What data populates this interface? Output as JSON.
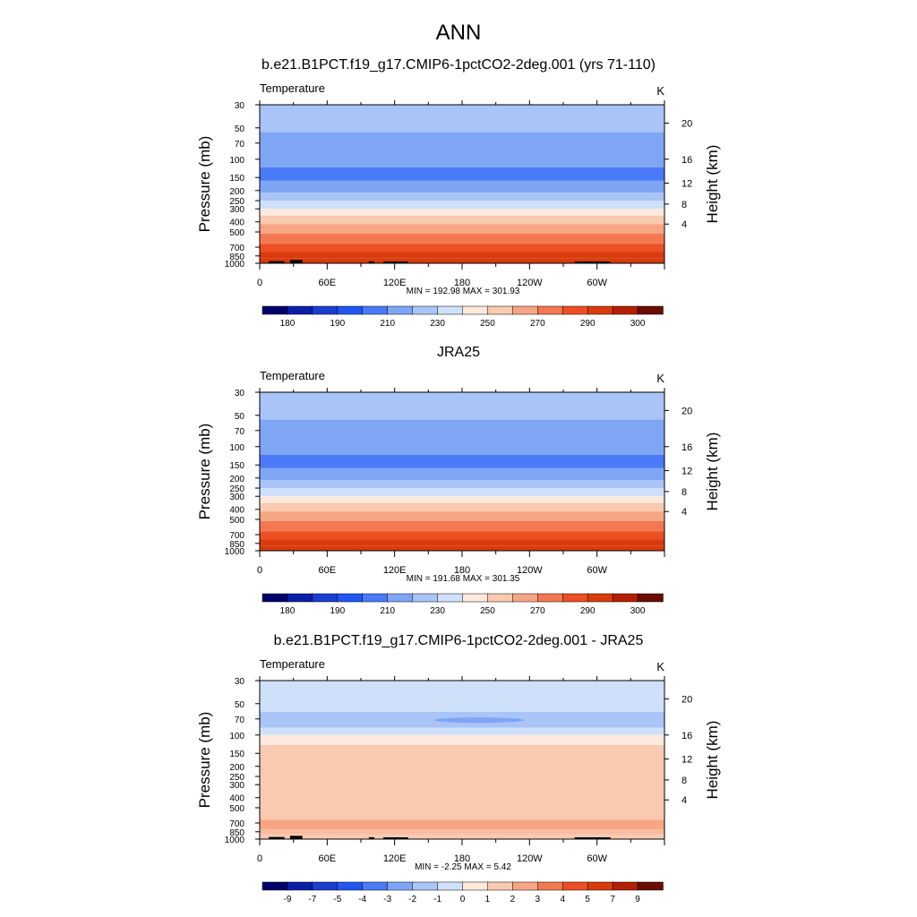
{
  "figure": {
    "title": "ANN"
  },
  "pressure_ticks": [
    "30",
    "50",
    "70",
    "100",
    "150",
    "200",
    "250",
    "300",
    "400",
    "500",
    "700",
    "850",
    "1000"
  ],
  "height_ticks": [
    "20",
    "16",
    "12",
    "8",
    "4"
  ],
  "lon_ticks": [
    "0",
    "60E",
    "120E",
    "180",
    "120W",
    "60W"
  ],
  "chart_data": [
    {
      "type": "heatmap",
      "title": "b.e21.B1PCT.f19_g17.CMIP6-1pctCO2-2deg.001 (yrs 71-110)",
      "left_label": "Temperature",
      "units": "K",
      "ylabel": "Pressure (mb)",
      "ylabel_right": "Height (km)",
      "stats": "MIN = 192.98  MAX = 301.93",
      "colorbar_labels": [
        "180",
        "190",
        "210",
        "230",
        "250",
        "270",
        "290",
        "300"
      ],
      "x_range_deg": [
        0,
        360
      ],
      "y_range_mb": [
        30,
        1000
      ],
      "levels_top_to_bottom": [
        {
          "p": 30,
          "value": 215
        },
        {
          "p": 55,
          "value": 205
        },
        {
          "p": 120,
          "value": 199
        },
        {
          "p": 160,
          "value": 207
        },
        {
          "p": 210,
          "value": 215
        },
        {
          "p": 250,
          "value": 225
        },
        {
          "p": 300,
          "value": 235
        },
        {
          "p": 350,
          "value": 245
        },
        {
          "p": 420,
          "value": 255
        },
        {
          "p": 520,
          "value": 263
        },
        {
          "p": 650,
          "value": 270
        },
        {
          "p": 780,
          "value": 280
        },
        {
          "p": 900,
          "value": 288
        },
        {
          "p": 1000,
          "value": 296
        }
      ],
      "terrain": true
    },
    {
      "type": "heatmap",
      "title": "JRA25",
      "left_label": "Temperature",
      "units": "K",
      "ylabel": "Pressure (mb)",
      "ylabel_right": "Height (km)",
      "stats": "MIN = 191.68  MAX = 301.35",
      "colorbar_labels": [
        "180",
        "190",
        "210",
        "230",
        "250",
        "270",
        "290",
        "300"
      ],
      "x_range_deg": [
        0,
        360
      ],
      "y_range_mb": [
        30,
        1000
      ],
      "levels_top_to_bottom": [
        {
          "p": 30,
          "value": 215
        },
        {
          "p": 55,
          "value": 205
        },
        {
          "p": 120,
          "value": 199
        },
        {
          "p": 160,
          "value": 207
        },
        {
          "p": 210,
          "value": 215
        },
        {
          "p": 250,
          "value": 225
        },
        {
          "p": 300,
          "value": 235
        },
        {
          "p": 350,
          "value": 245
        },
        {
          "p": 420,
          "value": 255
        },
        {
          "p": 520,
          "value": 263
        },
        {
          "p": 650,
          "value": 270
        },
        {
          "p": 780,
          "value": 280
        },
        {
          "p": 900,
          "value": 288
        },
        {
          "p": 1000,
          "value": 296
        }
      ],
      "terrain": false
    },
    {
      "type": "heatmap",
      "title": "b.e21.B1PCT.f19_g17.CMIP6-1pctCO2-2deg.001 - JRA25",
      "left_label": "Temperature",
      "units": "K",
      "ylabel": "Pressure (mb)",
      "ylabel_right": "Height (km)",
      "stats": "MIN =  -2.25  MAX =   5.42",
      "colorbar_labels": [
        "-9",
        "-7",
        "-5",
        "-4",
        "-3",
        "-2",
        "-1",
        "0",
        "1",
        "2",
        "3",
        "4",
        "5",
        "7",
        "9"
      ],
      "x_range_deg": [
        0,
        360
      ],
      "y_range_mb": [
        30,
        1000
      ],
      "levels_top_to_bottom": [
        {
          "p": 30,
          "value": -0.5
        },
        {
          "p": 60,
          "value": -1.5
        },
        {
          "p": 85,
          "value": -0.5
        },
        {
          "p": 100,
          "value": 0.5
        },
        {
          "p": 125,
          "value": 1.5
        },
        {
          "p": 650,
          "value": 2.5
        },
        {
          "p": 900,
          "value": 1.5
        },
        {
          "p": 1000,
          "value": 3.5
        }
      ],
      "terrain": true
    }
  ],
  "colors": {
    "abs_palette": [
      "#00006a",
      "#0a1fa8",
      "#1a3fd0",
      "#2157f0",
      "#4a7af7",
      "#7fa5f5",
      "#a9c4f6",
      "#cfe0fa",
      "#fde9dc",
      "#f9c9b0",
      "#f7a685",
      "#f3784f",
      "#ec4f21",
      "#d93b0d",
      "#b31f03",
      "#6b0c00"
    ],
    "diff_palette": [
      "#00006a",
      "#0a1fa8",
      "#1a3fd0",
      "#2157f0",
      "#4a7af7",
      "#7fa5f5",
      "#a9c4f6",
      "#cfe0fa",
      "#fde9dc",
      "#f9c9b0",
      "#f7a685",
      "#f3784f",
      "#ec4f21",
      "#d93b0d",
      "#b31f03",
      "#6b0c00"
    ]
  }
}
